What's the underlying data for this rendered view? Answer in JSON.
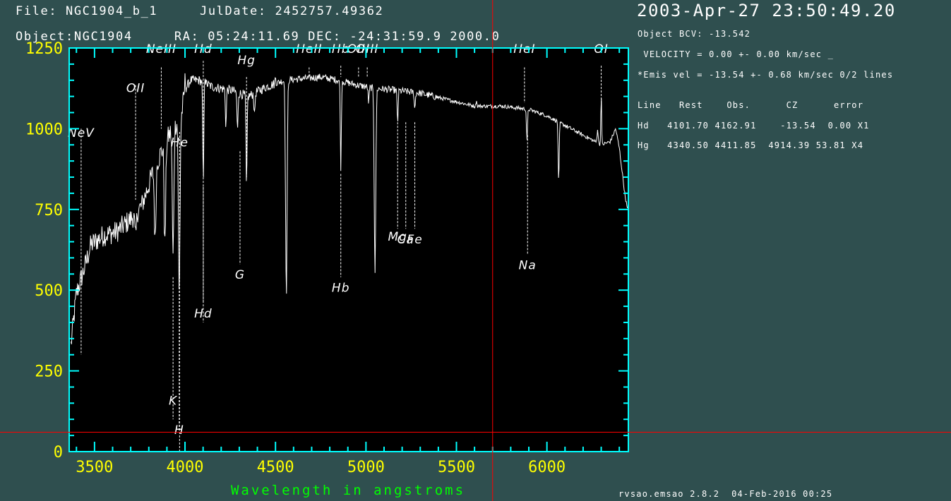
{
  "header": {
    "file": "File: NGC1904_b_1",
    "juldate": "JulDate: 2452757.49362",
    "object_line": "Object:NGC1904     RA: 05:24:11.69 DEC: -24:31:59.9 2000.0",
    "datetime": "2003-Apr-27 23:50:49.20"
  },
  "info": {
    "bcv": "Object BCV: -13.542",
    "velocity": " VELOCITY = 0.00 +- 0.00 km/sec _",
    "emis": "*Emis vel = -13.54 +- 0.68 km/sec 0/2 lines",
    "table_header": "Line   Rest    Obs.      CZ      error",
    "rows": [
      "Hd   4101.70 4162.91    -13.54  0.00 X1",
      "Hg   4340.50 4411.85  4914.39 53.81 X4"
    ]
  },
  "footer": "rvsao.emsao 2.8.2  04-Feb-2016 00:25",
  "colors": {
    "background": "#2f4f4f",
    "plot_bg": "#000000",
    "frame": "#00ffff",
    "tick_labels": "#ffff00",
    "xlabel": "#00ff00",
    "spectrum": "#ffffff",
    "cursor": "#ff0000"
  },
  "chart_data": {
    "type": "line",
    "title": "",
    "xlabel": "Wavelength in angstroms",
    "ylabel": "",
    "xlim": [
      3360,
      6450
    ],
    "ylim": [
      0,
      1250
    ],
    "x_ticks": [
      3500,
      4000,
      4500,
      5000,
      5500,
      6000
    ],
    "y_ticks": [
      0,
      250,
      500,
      750,
      1000,
      1250
    ],
    "grid": false,
    "cursor": {
      "x": 5700,
      "y": 60
    },
    "continuum": [
      [
        3370,
        330
      ],
      [
        3400,
        490
      ],
      [
        3440,
        560
      ],
      [
        3480,
        640
      ],
      [
        3550,
        670
      ],
      [
        3620,
        680
      ],
      [
        3700,
        720
      ],
      [
        3760,
        760
      ],
      [
        3820,
        860
      ],
      [
        3870,
        930
      ],
      [
        3930,
        1000
      ],
      [
        3980,
        1040
      ],
      [
        4000,
        1120
      ],
      [
        4030,
        1150
      ],
      [
        4080,
        1150
      ],
      [
        4150,
        1130
      ],
      [
        4250,
        1120
      ],
      [
        4350,
        1100
      ],
      [
        4450,
        1130
      ],
      [
        4550,
        1150
      ],
      [
        4650,
        1155
      ],
      [
        4750,
        1160
      ],
      [
        4850,
        1150
      ],
      [
        4950,
        1135
      ],
      [
        5050,
        1125
      ],
      [
        5150,
        1120
      ],
      [
        5300,
        1110
      ],
      [
        5450,
        1090
      ],
      [
        5600,
        1070
      ],
      [
        5750,
        1070
      ],
      [
        5900,
        1060
      ],
      [
        6000,
        1040
      ],
      [
        6100,
        1010
      ],
      [
        6200,
        980
      ],
      [
        6300,
        950
      ],
      [
        6350,
        960
      ],
      [
        6380,
        1000
      ],
      [
        6400,
        940
      ],
      [
        6430,
        800
      ],
      [
        6445,
        750
      ]
    ],
    "absorption": [
      [
        3727,
        660
      ],
      [
        3835,
        650
      ],
      [
        3889,
        640
      ],
      [
        3934,
        600
      ],
      [
        3968,
        480
      ],
      [
        4101,
        830
      ],
      [
        4226,
        1010
      ],
      [
        4290,
        990
      ],
      [
        4340,
        810
      ],
      [
        4384,
        1040
      ],
      [
        4560,
        480
      ],
      [
        4861,
        880
      ],
      [
        5015,
        1080
      ],
      [
        5050,
        560
      ],
      [
        5175,
        1020
      ],
      [
        5270,
        1060
      ],
      [
        5890,
        960
      ],
      [
        6065,
        830
      ],
      [
        6280,
        1000
      ]
    ],
    "emission": [
      [
        4000,
        1160
      ],
      [
        4110,
        1170
      ],
      [
        4500,
        1160
      ],
      [
        5610,
        1090
      ],
      [
        6300,
        1110
      ]
    ],
    "line_labels": [
      {
        "name": "NeV",
        "x": 3426,
        "y_top": 1000,
        "y_bot": 300,
        "label_y": 975
      },
      {
        "name": "OII",
        "x": 3727,
        "y_top": 1135,
        "y_bot": 780,
        "label_y": 1113
      },
      {
        "name": "NeIII",
        "x": 3869,
        "y_top": 1190,
        "y_bot": 1000,
        "label_y": 1235
      },
      {
        "name": "He",
        "x": 3970,
        "y_top": 990,
        "y_bot": 0,
        "label_y": 945
      },
      {
        "name": "Hd",
        "x": 4101,
        "y_top": 1210,
        "y_bot": 400,
        "label_y": 1235
      },
      {
        "name": "Hg",
        "x": 4340,
        "y_top": 1160,
        "y_bot": 850,
        "label_y": 1200
      },
      {
        "name": "HeII",
        "x": 4686,
        "y_top": 1190,
        "y_bot": 1160,
        "label_y": 1235
      },
      {
        "name": "Hb",
        "x": 4861,
        "y_top": 1195,
        "y_bot": 1160,
        "label_y": 1235
      },
      {
        "name": "OIII",
        "x": 4959,
        "y_top": 1190,
        "y_bot": 1160,
        "label_y": 1235
      },
      {
        "name": "OIII",
        "x": 5007,
        "y_top": 1190,
        "y_bot": 1160,
        "label_y": 1235
      },
      {
        "name": "HeI",
        "x": 5876,
        "y_top": 1190,
        "y_bot": 1080,
        "label_y": 1235
      },
      {
        "name": "OI",
        "x": 6300,
        "y_top": 1195,
        "y_bot": 1060,
        "label_y": 1235
      },
      {
        "name": "K",
        "x": 3934,
        "y_top": 540,
        "y_bot": 100,
        "label_y": 145
      },
      {
        "name": "H",
        "x": 3968,
        "y_top": 520,
        "y_bot": 60,
        "label_y": 55
      },
      {
        "name": "Hd",
        "x": 4101,
        "y_top": 820,
        "y_bot": 460,
        "label_y": 415
      },
      {
        "name": "G",
        "x": 4304,
        "y_top": 930,
        "y_bot": 580,
        "label_y": 535
      },
      {
        "name": "Hb",
        "x": 4861,
        "y_top": 860,
        "y_bot": 540,
        "label_y": 495
      },
      {
        "name": "Mg",
        "x": 5175,
        "y_top": 1020,
        "y_bot": 690,
        "label_y": 653
      },
      {
        "name": "Ca",
        "x": 5220,
        "y_top": 1020,
        "y_bot": 690,
        "label_y": 645
      },
      {
        "name": "Fe",
        "x": 5270,
        "y_top": 1020,
        "y_bot": 690,
        "label_y": 645
      },
      {
        "name": "Na",
        "x": 5893,
        "y_top": 980,
        "y_bot": 610,
        "label_y": 565
      }
    ]
  }
}
